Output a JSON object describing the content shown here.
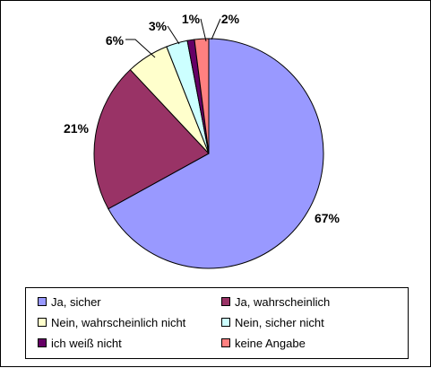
{
  "chart_data": {
    "type": "pie",
    "title": "",
    "categories": [
      "Ja, sicher",
      "Ja, wahrscheinlich",
      "Nein, wahrscheinlich nicht",
      "Nein, sicher nicht",
      "ich weiß nicht",
      "keine Angabe"
    ],
    "values": [
      67,
      21,
      6,
      3,
      1,
      2
    ],
    "value_labels": [
      "67%",
      "21%",
      "6%",
      "3%",
      "1%",
      "2%"
    ],
    "colors": [
      "#9999ff",
      "#993366",
      "#ffffcc",
      "#ccffff",
      "#660066",
      "#ff8080"
    ],
    "legend": "bottom"
  }
}
